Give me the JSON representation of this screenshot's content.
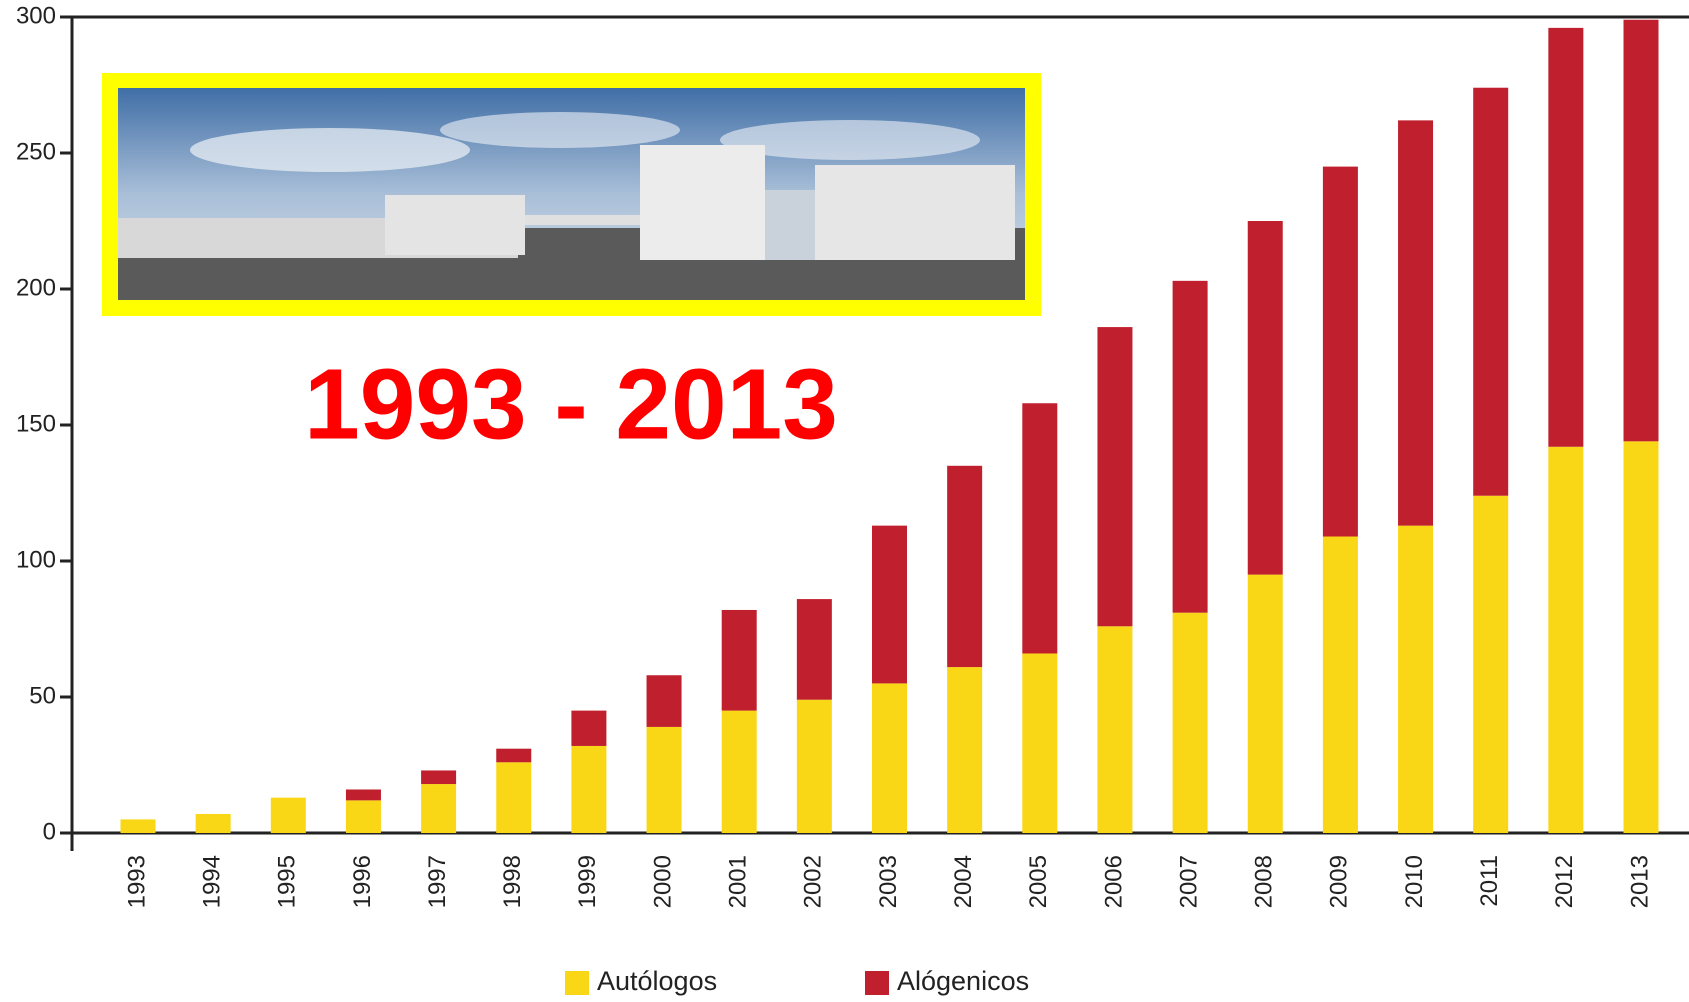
{
  "chart_data": {
    "type": "stacked_bar",
    "annotation": "1993 - 2013",
    "categories": [
      "1993",
      "1994",
      "1995",
      "1996",
      "1997",
      "1998",
      "1999",
      "2000",
      "2001",
      "2002",
      "2003",
      "2004",
      "2005",
      "2006",
      "2007",
      "2008",
      "2009",
      "2010",
      "2011",
      "2012",
      "2013"
    ],
    "series": [
      {
        "name": "Autólogos",
        "color": "#f9d716",
        "values": [
          5,
          7,
          13,
          12,
          18,
          26,
          32,
          39,
          45,
          49,
          55,
          61,
          66,
          76,
          81,
          95,
          109,
          113,
          124,
          142,
          144
        ]
      },
      {
        "name": "Alógenicos",
        "color": "#c0202e",
        "values": [
          0,
          0,
          0,
          4,
          5,
          5,
          13,
          19,
          37,
          37,
          58,
          74,
          92,
          110,
          122,
          130,
          136,
          149,
          150,
          154,
          155
        ]
      }
    ],
    "ylim": [
      0,
      300
    ],
    "yticks": [
      0,
      50,
      100,
      150,
      200,
      250,
      300
    ],
    "grid": false,
    "legend": "bottom"
  }
}
